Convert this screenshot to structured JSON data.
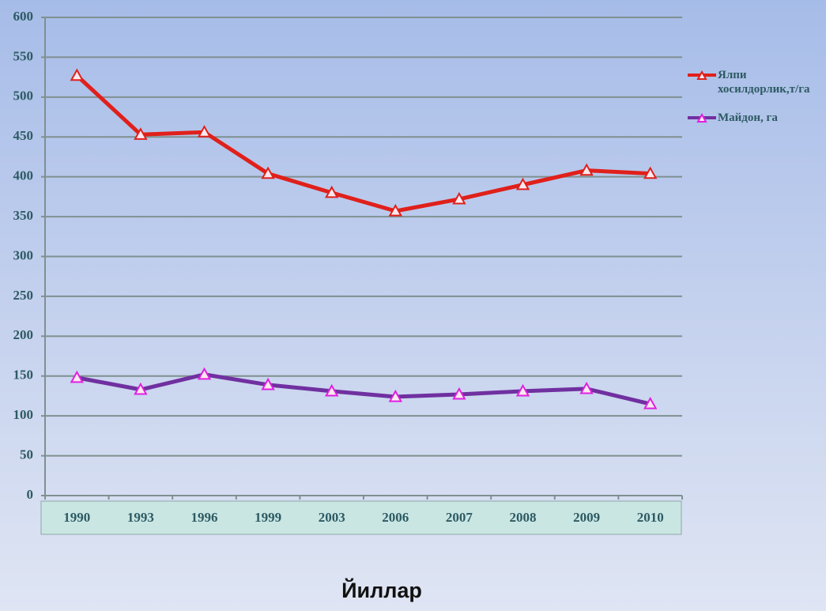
{
  "chart_data": {
    "type": "line",
    "x_label": "Йиллар",
    "categories": [
      "1990",
      "1993",
      "1996",
      "1999",
      "2003",
      "2006",
      "2007",
      "2008",
      "2009",
      "2010"
    ],
    "series": [
      {
        "name": "Ялпи хосилдорлик,т/га",
        "color": "#e0201a",
        "marker_color": "#e0201a",
        "values": [
          527,
          453,
          456,
          404,
          380,
          357,
          372,
          390,
          408,
          404
        ]
      },
      {
        "name": "Майдон, га",
        "color": "#7030a0",
        "marker_color": "#e020e0",
        "values": [
          148,
          133,
          152,
          139,
          131,
          124,
          127,
          131,
          134,
          115
        ]
      }
    ],
    "ylim": [
      0,
      600
    ],
    "yticks": [
      0,
      50,
      100,
      150,
      200,
      250,
      300,
      350,
      400,
      450,
      500,
      550,
      600
    ],
    "grid": true,
    "legend": "right"
  }
}
